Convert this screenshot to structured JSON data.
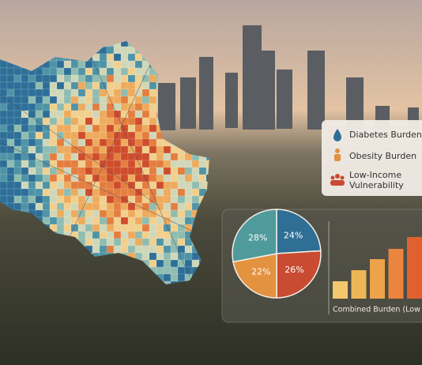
{
  "legend": {
    "items": [
      "Diabetes Burden",
      "Obesity Burden",
      "Low-Income\nVulnerability"
    ]
  },
  "chart_data": [
    {
      "type": "pie",
      "values": [
        24,
        26,
        22,
        28
      ],
      "value_labels": [
        "24%",
        "26%",
        "22%",
        "28%"
      ],
      "colors": [
        "#2f6f95",
        "#c94b32",
        "#e3923f",
        "#4f9a9b"
      ]
    },
    {
      "type": "bar",
      "title": "Combined Burden (Low →",
      "values": [
        22,
        36,
        50,
        63,
        78
      ],
      "colors": [
        "#f3c86c",
        "#efb657",
        "#eea249",
        "#ea843f",
        "#e0612f"
      ]
    }
  ]
}
